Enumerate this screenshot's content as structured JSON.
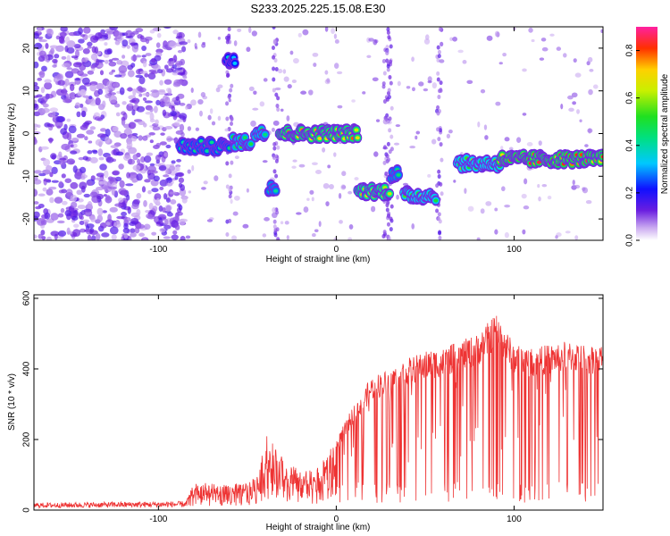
{
  "title": "S233.2025.225.15.08.E30",
  "colors": {
    "signal": "#ee3333",
    "background": "#ffffff",
    "axis": "#000000"
  },
  "chart_data": [
    {
      "type": "heatmap",
      "title": "S233.2025.225.15.08.E30",
      "xlabel": "Height of straight line (km)",
      "ylabel": "Frequency (Hz)",
      "xlim": [
        -170,
        150
      ],
      "ylim": [
        -25,
        25
      ],
      "x_ticks": [
        {
          "v": -100,
          "label": "-100"
        },
        {
          "v": 0,
          "label": "0"
        },
        {
          "v": 100,
          "label": "100"
        }
      ],
      "y_ticks": [
        {
          "v": -20,
          "label": "-20"
        },
        {
          "v": -10,
          "label": "-10"
        },
        {
          "v": 0,
          "label": "0"
        },
        {
          "v": 10,
          "label": "10"
        },
        {
          "v": 20,
          "label": "20"
        }
      ],
      "colorbar": {
        "label": "Normalized spectral amplitude",
        "range": [
          0,
          0.9
        ],
        "ticks": [
          {
            "v": 0,
            "label": "0.0"
          },
          {
            "v": 0.2,
            "label": "0.2"
          },
          {
            "v": 0.4,
            "label": "0.4"
          },
          {
            "v": 0.6,
            "label": "0.6"
          },
          {
            "v": 0.8,
            "label": "0.8"
          }
        ]
      },
      "ridge": [
        {
          "x": [
            -88,
            -60
          ],
          "freq": -3,
          "amp": 0.45
        },
        {
          "x": [
            -58,
            -48
          ],
          "freq": -2,
          "amp": 0.55
        },
        {
          "x": [
            -46,
            -40
          ],
          "freq": 0,
          "amp": 0.55
        },
        {
          "x": [
            -62,
            -57
          ],
          "freq": 17.5,
          "amp": 0.4
        },
        {
          "x": [
            -38,
            -34
          ],
          "freq": -12.5,
          "amp": 0.5
        },
        {
          "x": [
            -32,
            12
          ],
          "freq": 0,
          "amp": 0.8
        },
        {
          "x": [
            12,
            30
          ],
          "freq": -13.5,
          "amp": 0.75
        },
        {
          "x": [
            31,
            35
          ],
          "freq": -9.5,
          "amp": 0.5
        },
        {
          "x": [
            38,
            56
          ],
          "freq": -14.5,
          "amp": 0.6
        },
        {
          "x": [
            68,
            92
          ],
          "freq": -7,
          "amp": 0.6
        },
        {
          "x": [
            92,
            150
          ],
          "freq": -6,
          "amp": 0.85
        }
      ]
    },
    {
      "type": "line",
      "xlabel": "Height of straight line (km)",
      "ylabel": "SNR (10 * v/v)",
      "xlim": [
        -170,
        150
      ],
      "ylim": [
        0,
        610
      ],
      "x_ticks": [
        {
          "v": -100,
          "label": "-100"
        },
        {
          "v": 0,
          "label": "0"
        },
        {
          "v": 100,
          "label": "100"
        }
      ],
      "y_ticks": [
        {
          "v": 0,
          "label": "0"
        },
        {
          "v": 200,
          "label": "200"
        },
        {
          "v": 400,
          "label": "400"
        },
        {
          "v": 600,
          "label": "600"
        }
      ],
      "series": [
        {
          "name": "SNR",
          "envelope_x": [
            -170,
            -85,
            -80,
            -60,
            -45,
            -40,
            -30,
            -20,
            -10,
            0,
            10,
            20,
            30,
            40,
            50,
            60,
            70,
            80,
            90,
            100,
            110,
            120,
            130,
            140,
            150
          ],
          "envelope_y": [
            18,
            22,
            80,
            70,
            90,
            220,
            150,
            110,
            120,
            200,
            300,
            380,
            400,
            430,
            450,
            460,
            480,
            500,
            560,
            470,
            460,
            470,
            480,
            470,
            470
          ]
        }
      ]
    }
  ]
}
